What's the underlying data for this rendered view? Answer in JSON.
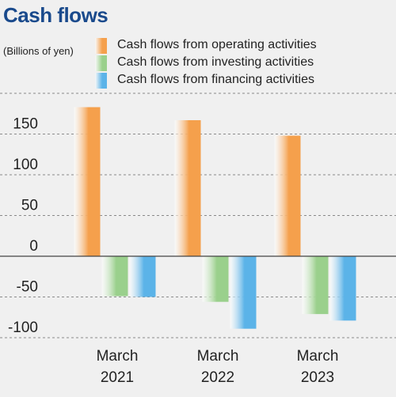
{
  "title": "Cash flows",
  "unit_label": "(Billions of yen)",
  "chart_data": {
    "type": "bar",
    "title": "Cash flows",
    "ylabel": "(Billions of yen)",
    "categories": [
      [
        "March",
        "2021"
      ],
      [
        "March",
        "2022"
      ],
      [
        "March",
        "2023"
      ]
    ],
    "ylim": [
      -100,
      200
    ],
    "yticks": [
      150,
      100,
      50,
      0,
      -50,
      -100
    ],
    "series": [
      {
        "name": "Cash flows from operating activities",
        "values": [
          183,
          167,
          148
        ],
        "color": "#f5a04c"
      },
      {
        "name": "Cash flows from investing activities",
        "values": [
          -49,
          -56,
          -71
        ],
        "color": "#9ad08c"
      },
      {
        "name": "Cash flows from financing activities",
        "values": [
          -50,
          -89,
          -79
        ],
        "color": "#5bb3e8"
      }
    ],
    "legend_position": "top",
    "grid": true
  }
}
